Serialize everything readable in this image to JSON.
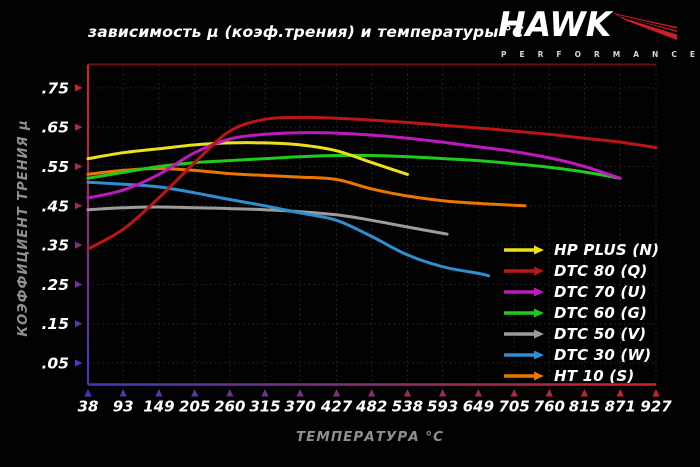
{
  "title": "зависимость μ (коэф.трения) и температуры °C",
  "logo": {
    "brand": "HAWK",
    "subtitle": "P E R F O R M A N C E",
    "wing_color": "#cc1f27"
  },
  "chart_data": {
    "type": "line",
    "title": "зависимость μ (коэф.трения) и температуры °C",
    "xlabel": "ТЕМПЕРАТУРА °C",
    "ylabel": "КОЭФФИЦИЕНТ ТРЕНИЯ μ",
    "x_ticks": [
      38,
      93,
      149,
      205,
      260,
      315,
      370,
      427,
      482,
      538,
      593,
      649,
      705,
      760,
      815,
      871,
      927
    ],
    "y_ticks": [
      0.05,
      0.15,
      0.25,
      0.35,
      0.45,
      0.55,
      0.65,
      0.75
    ],
    "y_tick_labels": [
      ".05",
      ".15",
      ".25",
      ".35",
      ".45",
      ".55",
      ".65",
      ".75"
    ],
    "xlim": [
      38,
      927
    ],
    "ylim": [
      0,
      0.8
    ],
    "grid": true,
    "legend_position": "lower right",
    "axis_colors": {
      "y_top": "#cf2424",
      "y_bottom": "#4338bf",
      "x_left": "#4338bf",
      "x_right": "#cf2424",
      "plot_top_border": "#6e0e0e",
      "tick_label_color": "#ffffff",
      "grid_color": "#2a2a2a"
    },
    "series": [
      {
        "name": "DTC 50 (V)",
        "color": "#9c9c9c",
        "points": [
          [
            38,
            0.44
          ],
          [
            93,
            0.445
          ],
          [
            149,
            0.447
          ],
          [
            205,
            0.445
          ],
          [
            260,
            0.443
          ],
          [
            315,
            0.44
          ],
          [
            370,
            0.435
          ],
          [
            427,
            0.427
          ],
          [
            482,
            0.413
          ],
          [
            538,
            0.396
          ],
          [
            600,
            0.378
          ]
        ]
      },
      {
        "name": "DTC 30 (W)",
        "color": "#2e8fd0",
        "points": [
          [
            38,
            0.51
          ],
          [
            93,
            0.505
          ],
          [
            149,
            0.498
          ],
          [
            205,
            0.483
          ],
          [
            260,
            0.466
          ],
          [
            315,
            0.45
          ],
          [
            370,
            0.432
          ],
          [
            427,
            0.413
          ],
          [
            482,
            0.372
          ],
          [
            538,
            0.325
          ],
          [
            593,
            0.295
          ],
          [
            649,
            0.278
          ],
          [
            665,
            0.272
          ]
        ]
      },
      {
        "name": "HT 10 (S)",
        "color": "#ea7600",
        "points": [
          [
            38,
            0.53
          ],
          [
            93,
            0.54
          ],
          [
            149,
            0.545
          ],
          [
            205,
            0.54
          ],
          [
            260,
            0.532
          ],
          [
            315,
            0.527
          ],
          [
            370,
            0.523
          ],
          [
            427,
            0.517
          ],
          [
            482,
            0.493
          ],
          [
            538,
            0.475
          ],
          [
            593,
            0.463
          ],
          [
            649,
            0.456
          ],
          [
            722,
            0.45
          ]
        ]
      },
      {
        "name": "DTC 60 (G)",
        "color": "#1ecb1e",
        "points": [
          [
            38,
            0.52
          ],
          [
            93,
            0.535
          ],
          [
            149,
            0.55
          ],
          [
            205,
            0.56
          ],
          [
            260,
            0.565
          ],
          [
            315,
            0.57
          ],
          [
            370,
            0.575
          ],
          [
            427,
            0.578
          ],
          [
            482,
            0.578
          ],
          [
            538,
            0.575
          ],
          [
            593,
            0.57
          ],
          [
            649,
            0.565
          ],
          [
            705,
            0.557
          ],
          [
            760,
            0.548
          ],
          [
            815,
            0.536
          ],
          [
            871,
            0.52
          ]
        ]
      },
      {
        "name": "HP PLUS (N)",
        "color": "#ecdf1b",
        "points": [
          [
            38,
            0.57
          ],
          [
            93,
            0.585
          ],
          [
            149,
            0.595
          ],
          [
            205,
            0.605
          ],
          [
            260,
            0.61
          ],
          [
            315,
            0.61
          ],
          [
            370,
            0.605
          ],
          [
            427,
            0.59
          ],
          [
            482,
            0.56
          ],
          [
            538,
            0.53
          ]
        ]
      },
      {
        "name": "DTC 70 (U)",
        "color": "#bd1abd",
        "points": [
          [
            38,
            0.47
          ],
          [
            93,
            0.49
          ],
          [
            149,
            0.53
          ],
          [
            205,
            0.585
          ],
          [
            260,
            0.62
          ],
          [
            315,
            0.632
          ],
          [
            370,
            0.636
          ],
          [
            427,
            0.635
          ],
          [
            482,
            0.63
          ],
          [
            538,
            0.622
          ],
          [
            593,
            0.612
          ],
          [
            649,
            0.6
          ],
          [
            705,
            0.588
          ],
          [
            760,
            0.572
          ],
          [
            815,
            0.55
          ],
          [
            871,
            0.52
          ]
        ]
      },
      {
        "name": "DTC 80 (Q)",
        "color": "#bb1616",
        "points": [
          [
            38,
            0.34
          ],
          [
            93,
            0.39
          ],
          [
            149,
            0.47
          ],
          [
            205,
            0.56
          ],
          [
            260,
            0.64
          ],
          [
            315,
            0.67
          ],
          [
            370,
            0.675
          ],
          [
            427,
            0.673
          ],
          [
            482,
            0.668
          ],
          [
            538,
            0.662
          ],
          [
            593,
            0.655
          ],
          [
            649,
            0.648
          ],
          [
            705,
            0.64
          ],
          [
            760,
            0.632
          ],
          [
            815,
            0.622
          ],
          [
            871,
            0.612
          ],
          [
            927,
            0.598
          ]
        ]
      }
    ],
    "legend_order": [
      "HP PLUS (N)",
      "DTC 80 (Q)",
      "DTC 70 (U)",
      "DTC 60 (G)",
      "DTC 50 (V)",
      "DTC 30 (W)",
      "HT 10 (S)"
    ]
  }
}
